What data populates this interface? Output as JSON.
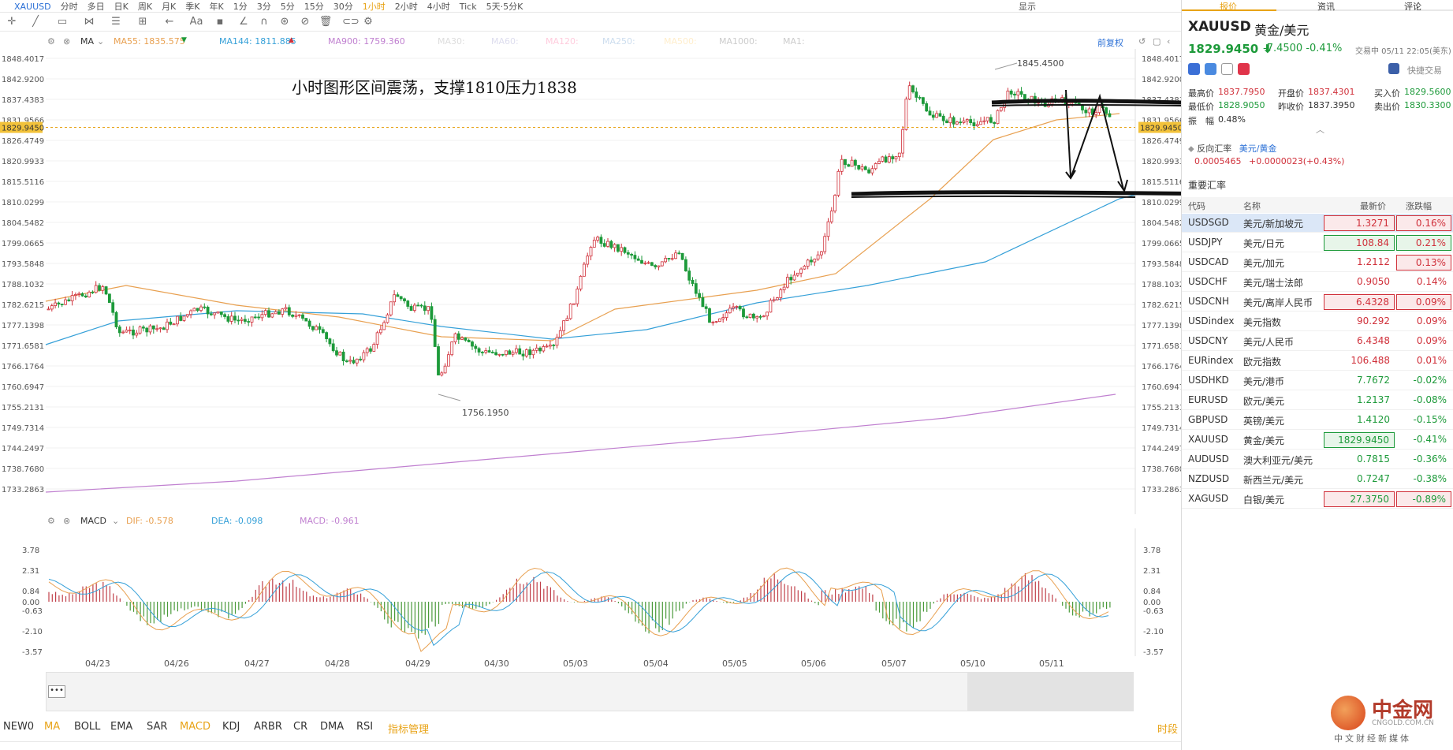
{
  "topbar": {
    "symbol": "XAUUSD",
    "periods": [
      "分时",
      "多日",
      "日K",
      "周K",
      "月K",
      "季K",
      "年K",
      "1分",
      "3分",
      "5分",
      "15分",
      "30分",
      "1小时",
      "2小时",
      "4小时",
      "Tick",
      "5天·5分K"
    ],
    "active_period": "1小时",
    "right_label": "显示"
  },
  "indicator_header": {
    "ma_label": "MA",
    "ma55": "MA55: 1835.575",
    "ma144": "MA144: 1811.885",
    "ma900": "MA900: 1759.360",
    "ma30": "MA30:",
    "ma60": "MA60:",
    "ma120": "MA120:",
    "ma250": "MA250:",
    "ma500": "MA500:",
    "ma1000": "MA1000:",
    "ma1": "MA1:",
    "restore": "前复权"
  },
  "annotation": "小时图形区间震荡，支撑1810压力1838",
  "price_axis_left": [
    "1848.4017",
    "1842.9200",
    "1837.4383",
    "1831.9566",
    "1826.4749",
    "1820.9933",
    "1815.5116",
    "1810.0299",
    "1804.5482",
    "1799.0665",
    "1793.5848",
    "1788.1032",
    "1782.6215",
    "1777.1398",
    "1771.6581",
    "1766.1764",
    "1760.6947",
    "1755.2131",
    "1749.7314",
    "1744.2497",
    "1738.7680",
    "1733.2863"
  ],
  "current_price_tag": "1829.9450",
  "high_label": "1845.4500",
  "low_label": "1756.1950",
  "macd_header": {
    "label": "MACD",
    "dif": "DIF: -0.578",
    "dea": "DEA: -0.098",
    "macd": "MACD: -0.961"
  },
  "macd_axis": [
    "3.78",
    "2.31",
    "0.84",
    "0.00",
    "-0.63",
    "-2.10",
    "-3.57"
  ],
  "x_dates": [
    "04/23",
    "04/26",
    "04/27",
    "04/28",
    "04/29",
    "04/30",
    "05/03",
    "05/04",
    "05/05",
    "05/06",
    "05/07",
    "05/10",
    "05/11"
  ],
  "indicators": [
    "NEW0",
    "MA",
    "BOLL",
    "EMA",
    "SAR",
    "MACD",
    "KDJ",
    "ARBR",
    "CR",
    "DMA",
    "RSI",
    "指标管理"
  ],
  "active_indicators": [
    "MA",
    "MACD"
  ],
  "timeframe_link": "时段",
  "panel": {
    "tabs": [
      "报价",
      "资讯",
      "评论"
    ],
    "symbol": "XAUUSD",
    "symbol_cn": "黄金/美元",
    "price": "1829.9450",
    "change": "-7.4500",
    "change_pct": "-0.41%",
    "status": "交易中 05/11 22:05(美东)",
    "quick_trade": "快捷交易",
    "high_label": "最高价",
    "high": "1837.7950",
    "open_label": "开盘价",
    "open": "1837.4301",
    "bid_label": "买入价",
    "bid": "1829.5600",
    "low_label": "最低价",
    "low": "1828.9050",
    "prev_label": "昨收价",
    "prev": "1837.3950",
    "ask_label": "卖出价",
    "ask": "1830.3300",
    "amp_label": "振　幅",
    "amp": "0.48%",
    "reverse_label": "反向汇率",
    "reverse_pair": "美元/黄金",
    "reverse_value": "0.0005465",
    "reverse_change": "+0.0000023(+0.43%)",
    "important_label": "重要汇率",
    "col_code": "代码",
    "col_name": "名称",
    "col_price": "最新价",
    "col_change": "涨跌幅"
  },
  "rates": [
    {
      "code": "USDSGD",
      "name": "美元/新加坡元",
      "price": "1.3271",
      "change": "0.16%",
      "dir": "up",
      "price_box": "red",
      "change_box": "red",
      "selected": true
    },
    {
      "code": "USDJPY",
      "name": "美元/日元",
      "price": "108.84",
      "change": "0.21%",
      "dir": "up",
      "price_box": "green",
      "change_box": "green",
      "selected": false
    },
    {
      "code": "USDCAD",
      "name": "美元/加元",
      "price": "1.2112",
      "change": "0.13%",
      "dir": "up",
      "price_box": "none",
      "change_box": "red",
      "selected": false
    },
    {
      "code": "USDCHF",
      "name": "美元/瑞士法郎",
      "price": "0.9050",
      "change": "0.14%",
      "dir": "up",
      "price_box": "none",
      "change_box": "none",
      "selected": false
    },
    {
      "code": "USDCNH",
      "name": "美元/离岸人民币",
      "price": "6.4328",
      "change": "0.09%",
      "dir": "up",
      "price_box": "red",
      "change_box": "red",
      "selected": false
    },
    {
      "code": "USDindex",
      "name": "美元指数",
      "price": "90.292",
      "change": "0.09%",
      "dir": "up",
      "price_box": "none",
      "change_box": "none",
      "selected": false
    },
    {
      "code": "USDCNY",
      "name": "美元/人民币",
      "price": "6.4348",
      "change": "0.09%",
      "dir": "up",
      "price_box": "none",
      "change_box": "none",
      "selected": false
    },
    {
      "code": "EURindex",
      "name": "欧元指数",
      "price": "106.488",
      "change": "0.01%",
      "dir": "up",
      "price_box": "none",
      "change_box": "none",
      "selected": false
    },
    {
      "code": "USDHKD",
      "name": "美元/港币",
      "price": "7.7672",
      "change": "-0.02%",
      "dir": "down",
      "price_box": "none",
      "change_box": "none",
      "selected": false
    },
    {
      "code": "EURUSD",
      "name": "欧元/美元",
      "price": "1.2137",
      "change": "-0.08%",
      "dir": "down",
      "price_box": "none",
      "change_box": "none",
      "selected": false
    },
    {
      "code": "GBPUSD",
      "name": "英镑/美元",
      "price": "1.4120",
      "change": "-0.15%",
      "dir": "down",
      "price_box": "none",
      "change_box": "none",
      "selected": false
    },
    {
      "code": "XAUUSD",
      "name": "黄金/美元",
      "price": "1829.9450",
      "change": "-0.41%",
      "dir": "down",
      "price_box": "green",
      "change_box": "none",
      "selected": false
    },
    {
      "code": "AUDUSD",
      "name": "澳大利亚元/美元",
      "price": "0.7815",
      "change": "-0.36%",
      "dir": "down",
      "price_box": "none",
      "change_box": "none",
      "selected": false
    },
    {
      "code": "NZDUSD",
      "name": "新西兰元/美元",
      "price": "0.7247",
      "change": "-0.38%",
      "dir": "down",
      "price_box": "none",
      "change_box": "none",
      "selected": false
    },
    {
      "code": "XAGUSD",
      "name": "白银/美元",
      "price": "27.3750",
      "change": "-0.89%",
      "dir": "down",
      "price_box": "red",
      "change_box": "red",
      "selected": false
    }
  ],
  "logo": {
    "name": "中金网",
    "domain": "CNGOLD.COM.CN",
    "slogan": "中文财经新媒体"
  },
  "colors": {
    "up": "#d0303a",
    "down": "#1d9a3a",
    "accent": "#e8a317",
    "ma55": "#e8a050",
    "ma144": "#35a0d8",
    "ma900": "#c080d0"
  }
}
